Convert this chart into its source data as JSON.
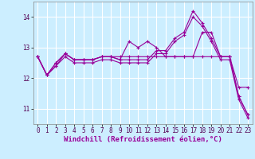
{
  "xlabel": "Windchill (Refroidissement éolien,°C)",
  "background_color": "#cceeff",
  "grid_color": "#ffffff",
  "line_color": "#990099",
  "x": [
    0,
    1,
    2,
    3,
    4,
    5,
    6,
    7,
    8,
    9,
    10,
    11,
    12,
    13,
    14,
    15,
    16,
    17,
    18,
    19,
    20,
    21,
    22,
    23
  ],
  "lines": [
    [
      12.7,
      12.1,
      12.5,
      12.8,
      12.6,
      12.6,
      12.6,
      12.7,
      12.7,
      12.6,
      12.6,
      12.6,
      12.6,
      12.9,
      12.9,
      13.3,
      13.5,
      14.2,
      13.8,
      13.3,
      12.7,
      12.7,
      11.4,
      10.8
    ],
    [
      12.7,
      12.1,
      12.5,
      12.8,
      12.6,
      12.6,
      12.6,
      12.7,
      12.7,
      12.6,
      13.2,
      13.0,
      13.2,
      13.0,
      12.7,
      12.7,
      12.7,
      12.7,
      13.5,
      13.5,
      12.7,
      12.7,
      11.4,
      10.8
    ],
    [
      12.7,
      12.1,
      12.4,
      12.8,
      12.6,
      12.6,
      12.6,
      12.7,
      12.7,
      12.7,
      12.7,
      12.7,
      12.7,
      12.7,
      12.7,
      12.7,
      12.7,
      12.7,
      12.7,
      12.7,
      12.7,
      12.7,
      11.7,
      11.7
    ],
    [
      12.7,
      12.1,
      12.4,
      12.7,
      12.5,
      12.5,
      12.5,
      12.6,
      12.6,
      12.5,
      12.5,
      12.5,
      12.5,
      12.8,
      12.8,
      13.2,
      13.4,
      14.0,
      13.7,
      13.2,
      12.6,
      12.6,
      11.3,
      10.7
    ]
  ],
  "ylim": [
    10.5,
    14.5
  ],
  "yticks": [
    11,
    12,
    13,
    14
  ],
  "xticks": [
    0,
    1,
    2,
    3,
    4,
    5,
    6,
    7,
    8,
    9,
    10,
    11,
    12,
    13,
    14,
    15,
    16,
    17,
    18,
    19,
    20,
    21,
    22,
    23
  ],
  "marker": "+",
  "markersize": 3,
  "linewidth": 0.8,
  "tick_fontsize": 5.5,
  "xlabel_fontsize": 6.5
}
